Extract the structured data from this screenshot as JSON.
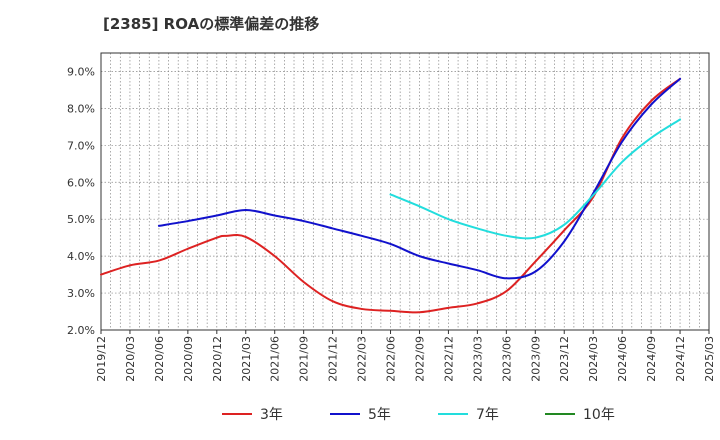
{
  "chart_data": {
    "type": "line",
    "title": "[2385]  ROAの標準偏差の推移",
    "xlabel": "",
    "ylabel": "",
    "x_start": "2019/12",
    "x_end": "2025/03",
    "x_ticks": [
      "2019/12",
      "2020/03",
      "2020/06",
      "2020/09",
      "2020/12",
      "2021/03",
      "2021/06",
      "2021/09",
      "2021/12",
      "2022/03",
      "2022/06",
      "2022/09",
      "2022/12",
      "2023/03",
      "2023/06",
      "2023/09",
      "2023/12",
      "2024/03",
      "2024/06",
      "2024/09",
      "2024/12",
      "2025/03"
    ],
    "y_ticks": [
      2.0,
      3.0,
      4.0,
      5.0,
      6.0,
      7.0,
      8.0,
      9.0
    ],
    "y_tick_labels": [
      "2.0%",
      "3.0%",
      "4.0%",
      "5.0%",
      "6.0%",
      "7.0%",
      "8.0%",
      "9.0%"
    ],
    "ylim": [
      2.0,
      9.5
    ],
    "grid": true,
    "legend_position": "bottom",
    "series": [
      {
        "name": "3年",
        "color": "#dd2222",
        "points": [
          [
            "2019/12",
            3.5
          ],
          [
            "2020/03",
            3.75
          ],
          [
            "2020/06",
            3.88
          ],
          [
            "2020/09",
            4.2
          ],
          [
            "2020/12",
            4.5
          ],
          [
            "2021/01",
            4.55
          ],
          [
            "2021/03",
            4.52
          ],
          [
            "2021/06",
            4.0
          ],
          [
            "2021/09",
            3.3
          ],
          [
            "2021/12",
            2.78
          ],
          [
            "2022/03",
            2.57
          ],
          [
            "2022/06",
            2.52
          ],
          [
            "2022/09",
            2.48
          ],
          [
            "2022/12",
            2.6
          ],
          [
            "2023/03",
            2.72
          ],
          [
            "2023/06",
            3.05
          ],
          [
            "2023/09",
            3.85
          ],
          [
            "2023/12",
            4.7
          ],
          [
            "2024/03",
            5.6
          ],
          [
            "2024/06",
            7.2
          ],
          [
            "2024/09",
            8.2
          ],
          [
            "2024/12",
            8.8
          ]
        ]
      },
      {
        "name": "5年",
        "color": "#1111cc",
        "points": [
          [
            "2020/06",
            4.82
          ],
          [
            "2020/09",
            4.95
          ],
          [
            "2020/12",
            5.1
          ],
          [
            "2021/03",
            5.25
          ],
          [
            "2021/06",
            5.1
          ],
          [
            "2021/09",
            4.95
          ],
          [
            "2021/12",
            4.75
          ],
          [
            "2022/03",
            4.55
          ],
          [
            "2022/06",
            4.33
          ],
          [
            "2022/09",
            4.0
          ],
          [
            "2022/12",
            3.8
          ],
          [
            "2023/03",
            3.62
          ],
          [
            "2023/06",
            3.4
          ],
          [
            "2023/09",
            3.58
          ],
          [
            "2023/12",
            4.4
          ],
          [
            "2024/03",
            5.7
          ],
          [
            "2024/06",
            7.1
          ],
          [
            "2024/09",
            8.1
          ],
          [
            "2024/12",
            8.8
          ]
        ]
      },
      {
        "name": "7年",
        "color": "#22dddd",
        "points": [
          [
            "2022/06",
            5.67
          ],
          [
            "2022/09",
            5.35
          ],
          [
            "2022/12",
            5.0
          ],
          [
            "2023/03",
            4.75
          ],
          [
            "2023/06",
            4.55
          ],
          [
            "2023/09",
            4.5
          ],
          [
            "2023/12",
            4.85
          ],
          [
            "2024/03",
            5.65
          ],
          [
            "2024/06",
            6.55
          ],
          [
            "2024/09",
            7.2
          ],
          [
            "2024/12",
            7.7
          ]
        ]
      },
      {
        "name": "10年",
        "color": "#228822",
        "points": []
      }
    ]
  }
}
